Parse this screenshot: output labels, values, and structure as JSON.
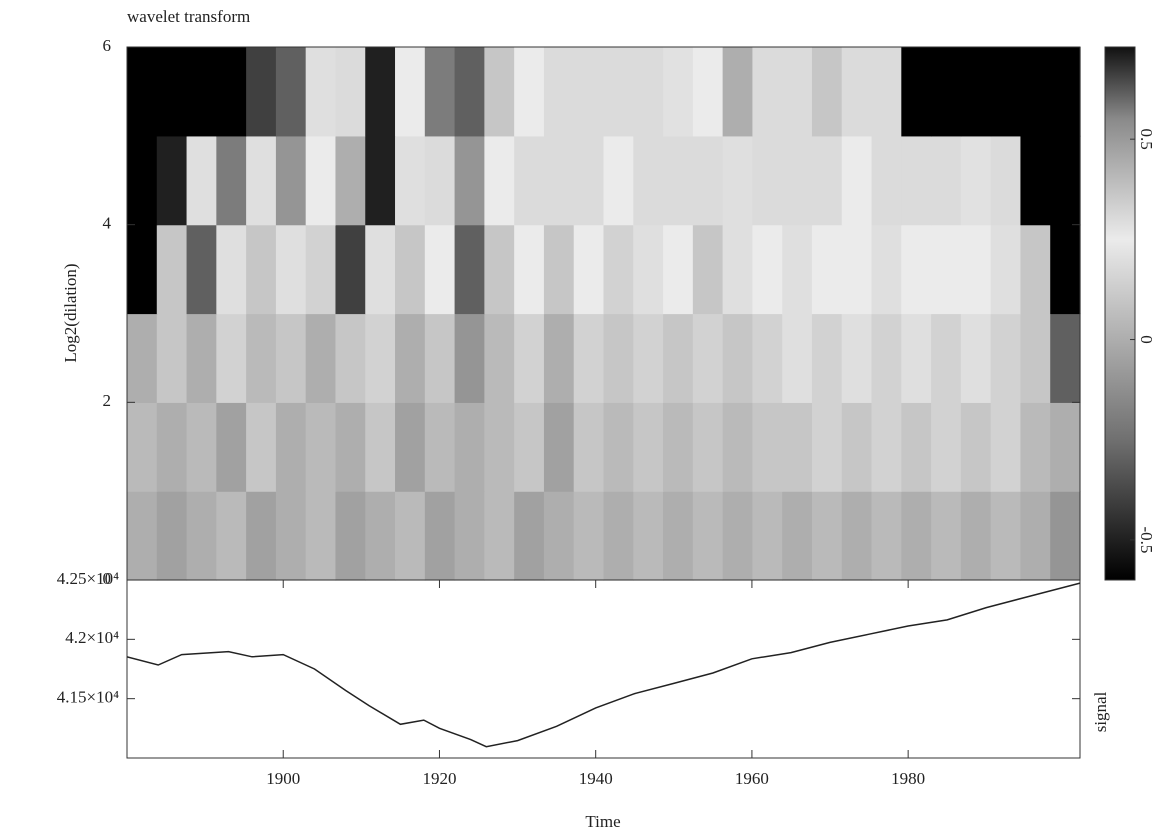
{
  "chart_data": [
    {
      "type": "heatmap",
      "title": "wavelet transform",
      "ylabel": "Log2(dilation)",
      "xlim": [
        1880,
        2002
      ],
      "ylim": [
        0,
        6
      ],
      "yticks": [
        0,
        2,
        4,
        6
      ],
      "zlim": [
        -0.6,
        0.73
      ],
      "colorbar_ticks": [
        -0.5,
        0,
        0.5
      ],
      "colormap": [
        [
          -0.6,
          "#000000"
        ],
        [
          -0.25,
          "#707070"
        ],
        [
          0.25,
          "#ebebeb"
        ],
        [
          0.55,
          "#8a8a8a"
        ],
        [
          0.73,
          "#111111"
        ]
      ],
      "z": [
        [
          0.0,
          -0.05,
          0.0,
          0.05,
          -0.05,
          0.0,
          0.05,
          -0.05,
          0.0,
          0.05,
          -0.05,
          0.0,
          0.05,
          -0.05,
          0.0,
          0.05,
          0.0,
          0.05,
          0.0,
          0.05,
          0.0,
          0.05,
          0.0,
          0.05,
          0.0,
          0.05,
          0.0,
          0.05,
          0.0,
          0.05,
          0.0,
          -0.1
        ],
        [
          0.05,
          0.0,
          0.05,
          -0.05,
          0.1,
          0.0,
          0.05,
          0.0,
          0.1,
          -0.05,
          0.05,
          0.0,
          0.05,
          0.1,
          -0.05,
          0.1,
          0.05,
          0.1,
          0.05,
          0.1,
          0.05,
          0.1,
          0.1,
          0.15,
          0.1,
          0.15,
          0.1,
          0.15,
          0.1,
          0.15,
          0.05,
          0.0
        ],
        [
          0.0,
          0.1,
          0.0,
          0.15,
          0.05,
          0.1,
          0.0,
          0.1,
          0.15,
          0.0,
          0.1,
          -0.1,
          0.05,
          0.15,
          0.0,
          0.15,
          0.1,
          0.15,
          0.1,
          0.15,
          0.1,
          0.15,
          0.2,
          0.15,
          0.2,
          0.15,
          0.2,
          0.15,
          0.2,
          0.15,
          0.1,
          -0.3
        ],
        [
          -0.6,
          0.1,
          -0.3,
          0.2,
          0.1,
          0.2,
          0.15,
          -0.4,
          0.2,
          0.1,
          0.25,
          -0.3,
          0.1,
          0.25,
          0.1,
          0.25,
          0.15,
          0.2,
          0.25,
          0.1,
          0.2,
          0.25,
          0.2,
          0.25,
          0.25,
          0.2,
          0.25,
          0.25,
          0.25,
          0.2,
          0.1,
          -0.6
        ],
        [
          -0.6,
          -0.5,
          0.2,
          -0.2,
          0.2,
          -0.1,
          0.25,
          0.0,
          -0.5,
          0.2,
          0.3,
          -0.1,
          0.25,
          0.3,
          0.3,
          0.3,
          0.25,
          0.3,
          0.3,
          0.3,
          0.2,
          0.3,
          0.3,
          0.3,
          0.25,
          0.3,
          0.3,
          0.3,
          0.28,
          0.3,
          -0.6,
          -0.6
        ],
        [
          -0.6,
          -0.6,
          -0.6,
          -0.6,
          -0.4,
          -0.3,
          0.2,
          0.3,
          -0.5,
          0.25,
          -0.2,
          -0.3,
          0.1,
          0.25,
          0.3,
          0.3,
          0.3,
          0.3,
          0.28,
          0.25,
          0.0,
          0.3,
          0.3,
          0.1,
          0.3,
          0.3,
          -0.6,
          -0.6,
          -0.6,
          -0.6,
          -0.6,
          -0.6
        ]
      ]
    },
    {
      "type": "line",
      "xlabel": "Time",
      "ylabel": "signal",
      "color": "#222222",
      "xlim": [
        1880,
        2002
      ],
      "ylim": [
        41000,
        42500
      ],
      "xticks": [
        1900,
        1920,
        1940,
        1960,
        1980
      ],
      "yticks": [
        {
          "value": 41500,
          "label": "4.15×10⁴"
        },
        {
          "value": 42000,
          "label": "4.2×10⁴"
        },
        {
          "value": 42500,
          "label": "4.25×10⁴"
        }
      ],
      "x": [
        1880,
        1884,
        1887,
        1893,
        1896,
        1900,
        1904,
        1908,
        1911,
        1915,
        1918,
        1920,
        1924,
        1926,
        1930,
        1935,
        1940,
        1945,
        1950,
        1955,
        1960,
        1965,
        1970,
        1975,
        1980,
        1985,
        1990,
        1995,
        2002
      ],
      "values": [
        41853,
        41784,
        41871,
        41897,
        41853,
        41871,
        41750,
        41569,
        41440,
        41284,
        41319,
        41250,
        41155,
        41095,
        41147,
        41267,
        41422,
        41543,
        41629,
        41716,
        41836,
        41888,
        41974,
        42043,
        42112,
        42164,
        42267,
        42353,
        42474
      ]
    }
  ]
}
